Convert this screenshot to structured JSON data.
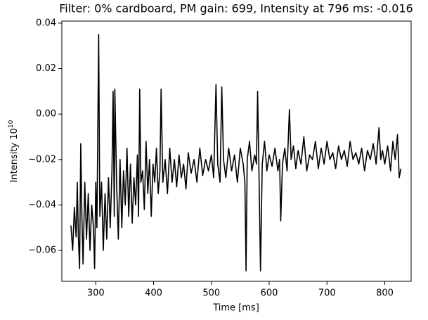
{
  "chart_data": {
    "type": "line",
    "title": "Filter: 0% cardboard, PM gain: 699, Intensity at 796 ms: -0.016",
    "xlabel": "Time [ms]",
    "ylabel": "Intensity 10",
    "ylabel_exponent": "10",
    "color": "#000000",
    "x": [
      257,
      260,
      263,
      266,
      268,
      270,
      272,
      274,
      276,
      278,
      281,
      284,
      287,
      290,
      293,
      296,
      298,
      300,
      302,
      305,
      307,
      310,
      313,
      316,
      319,
      322,
      325,
      328,
      330,
      332,
      333,
      336,
      339,
      342,
      345,
      348,
      351,
      354,
      357,
      360,
      363,
      366,
      369,
      372,
      374,
      376,
      378,
      381,
      384,
      387,
      390,
      393,
      396,
      399,
      402,
      405,
      408,
      411,
      413,
      416,
      420,
      424,
      428,
      432,
      436,
      440,
      444,
      448,
      452,
      456,
      460,
      465,
      470,
      475,
      480,
      485,
      490,
      495,
      500,
      504,
      508,
      511,
      515,
      518,
      521,
      525,
      530,
      535,
      540,
      545,
      550,
      555,
      558,
      560,
      562,
      566,
      570,
      575,
      578,
      580,
      582,
      585,
      588,
      592,
      596,
      600,
      605,
      610,
      615,
      618,
      620,
      623,
      627,
      631,
      635,
      638,
      642,
      646,
      650,
      655,
      660,
      665,
      670,
      675,
      680,
      685,
      690,
      695,
      700,
      705,
      710,
      715,
      720,
      725,
      730,
      735,
      740,
      745,
      750,
      755,
      760,
      765,
      770,
      775,
      780,
      785,
      790,
      793,
      796,
      800,
      805,
      810,
      814,
      818,
      822,
      825,
      828
    ],
    "values": [
      -0.049,
      -0.06,
      -0.041,
      -0.054,
      -0.03,
      -0.055,
      -0.068,
      -0.013,
      -0.045,
      -0.066,
      -0.03,
      -0.055,
      -0.035,
      -0.06,
      -0.04,
      -0.05,
      -0.068,
      -0.03,
      -0.05,
      0.035,
      -0.045,
      -0.03,
      -0.06,
      -0.035,
      -0.055,
      -0.028,
      -0.05,
      -0.025,
      0.01,
      -0.045,
      0.011,
      -0.03,
      -0.055,
      -0.02,
      -0.05,
      -0.025,
      -0.04,
      -0.015,
      -0.045,
      -0.022,
      -0.048,
      -0.028,
      -0.04,
      -0.018,
      -0.045,
      0.011,
      -0.03,
      -0.025,
      -0.042,
      -0.012,
      -0.035,
      -0.02,
      -0.045,
      -0.022,
      -0.03,
      -0.015,
      -0.035,
      -0.025,
      0.011,
      -0.03,
      -0.02,
      -0.035,
      -0.015,
      -0.03,
      -0.02,
      -0.032,
      -0.018,
      -0.028,
      -0.022,
      -0.033,
      -0.017,
      -0.026,
      -0.02,
      -0.03,
      -0.015,
      -0.027,
      -0.02,
      -0.025,
      -0.018,
      -0.028,
      0.013,
      -0.022,
      -0.03,
      0.012,
      -0.02,
      -0.028,
      -0.015,
      -0.025,
      -0.018,
      -0.03,
      -0.015,
      -0.022,
      -0.03,
      -0.069,
      -0.02,
      -0.012,
      -0.025,
      -0.018,
      -0.022,
      0.01,
      -0.02,
      -0.069,
      -0.022,
      -0.012,
      -0.025,
      -0.018,
      -0.023,
      -0.015,
      -0.025,
      -0.02,
      -0.047,
      -0.022,
      -0.015,
      -0.025,
      0.002,
      -0.02,
      -0.014,
      -0.024,
      -0.016,
      -0.022,
      -0.01,
      -0.025,
      -0.018,
      -0.02,
      -0.012,
      -0.024,
      -0.015,
      -0.022,
      -0.012,
      -0.02,
      -0.017,
      -0.024,
      -0.014,
      -0.02,
      -0.016,
      -0.023,
      -0.012,
      -0.02,
      -0.017,
      -0.022,
      -0.015,
      -0.025,
      -0.016,
      -0.02,
      -0.013,
      -0.022,
      -0.006,
      -0.02,
      -0.016,
      -0.022,
      -0.014,
      -0.025,
      -0.012,
      -0.02,
      -0.009,
      -0.028,
      -0.024
    ],
    "xlim": [
      241.3,
      845.6
    ],
    "ylim": [
      -0.0736,
      0.0409
    ],
    "xticks": [
      300,
      400,
      500,
      600,
      700,
      800
    ],
    "yticks": [
      {
        "value": -0.06,
        "label": "−0.06"
      },
      {
        "value": -0.04,
        "label": "−0.04"
      },
      {
        "value": -0.02,
        "label": "−0.02"
      },
      {
        "value": 0,
        "label": "0.00"
      },
      {
        "value": 0.02,
        "label": "0.02"
      },
      {
        "value": 0.04,
        "label": "0.04"
      }
    ],
    "grid": false
  }
}
